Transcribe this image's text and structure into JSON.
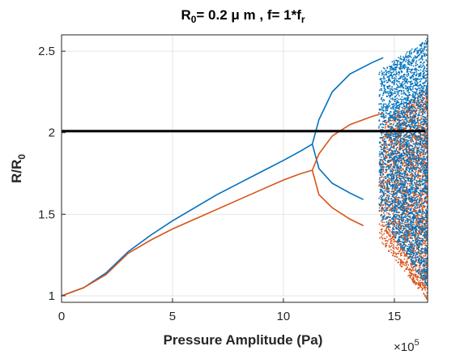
{
  "chart_data": {
    "type": "scatter",
    "title": {
      "r0_main": "R",
      "r0_sub": "0",
      "middle": "= 0.2 μ m , f= 1*f",
      "f_sub": "r"
    },
    "xlabel": "Pressure Amplitude (Pa)",
    "ylabel": {
      "main": "R/R",
      "sub": "0"
    },
    "x_exponent": {
      "base": "×10",
      "power": "5"
    },
    "xlim": [
      0,
      16.5
    ],
    "ylim": [
      0.96,
      2.6
    ],
    "x_ticks": [
      0,
      5,
      10,
      15
    ],
    "x_tick_labels": [
      "0",
      "5",
      "10",
      "15"
    ],
    "y_ticks": [
      1,
      1.5,
      2,
      2.5
    ],
    "y_tick_labels": [
      "1",
      "1.5",
      "2",
      "2.5"
    ],
    "grid": true,
    "colors": {
      "max_series": "#0072BD",
      "min_series": "#D95319",
      "threshold": "#000000"
    },
    "threshold_line": {
      "y": 2.01
    },
    "series": [
      {
        "branch": "max",
        "period1": [
          [
            0,
            1.0
          ],
          [
            1,
            1.05
          ],
          [
            2,
            1.14
          ],
          [
            3,
            1.27
          ],
          [
            4,
            1.37
          ],
          [
            5,
            1.46
          ],
          [
            6,
            1.54
          ],
          [
            7,
            1.62
          ],
          [
            8,
            1.69
          ],
          [
            9,
            1.76
          ],
          [
            10,
            1.83
          ],
          [
            10.8,
            1.89
          ],
          [
            11.3,
            1.93
          ]
        ],
        "period2_upper": [
          [
            11.3,
            1.93
          ],
          [
            11.6,
            2.08
          ],
          [
            12.2,
            2.25
          ],
          [
            13,
            2.36
          ],
          [
            14,
            2.43
          ],
          [
            14.5,
            2.46
          ]
        ],
        "period2_lower": [
          [
            11.3,
            1.93
          ],
          [
            11.6,
            1.78
          ],
          [
            12.2,
            1.69
          ],
          [
            13,
            1.63
          ],
          [
            13.6,
            1.59
          ]
        ]
      },
      {
        "branch": "min",
        "period1": [
          [
            0,
            1.0
          ],
          [
            1,
            1.05
          ],
          [
            2,
            1.13
          ],
          [
            3,
            1.26
          ],
          [
            4,
            1.34
          ],
          [
            5,
            1.41
          ],
          [
            6,
            1.47
          ],
          [
            7,
            1.53
          ],
          [
            8,
            1.59
          ],
          [
            9,
            1.65
          ],
          [
            10,
            1.71
          ],
          [
            10.8,
            1.75
          ],
          [
            11.3,
            1.77
          ]
        ],
        "period2_upper": [
          [
            11.3,
            1.77
          ],
          [
            11.6,
            1.87
          ],
          [
            12.2,
            1.98
          ],
          [
            13,
            2.05
          ],
          [
            14,
            2.1
          ],
          [
            14.5,
            2.12
          ]
        ],
        "period2_lower": [
          [
            11.3,
            1.77
          ],
          [
            11.6,
            1.62
          ],
          [
            12.2,
            1.54
          ],
          [
            13,
            1.47
          ],
          [
            13.6,
            1.43
          ]
        ]
      }
    ],
    "chaos_region": {
      "x_start": 14.3,
      "x_end": 16.5
    }
  }
}
